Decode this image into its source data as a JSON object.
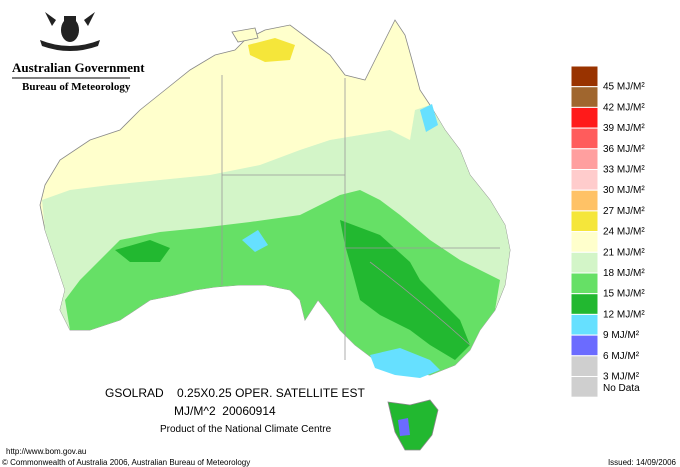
{
  "header": {
    "title": "Australian Government",
    "subtitle": "Bureau of Meteorology"
  },
  "legend": {
    "items": [
      {
        "label": "45 MJ/M²",
        "color": "#993300"
      },
      {
        "label": "42 MJ/M²",
        "color": "#a0662e"
      },
      {
        "label": "39 MJ/M²",
        "color": "#ff1a1a"
      },
      {
        "label": "36 MJ/M²",
        "color": "#ff5c5c"
      },
      {
        "label": "33 MJ/M²",
        "color": "#ff9f9f"
      },
      {
        "label": "30 MJ/M²",
        "color": "#ffcccc"
      },
      {
        "label": "27 MJ/M²",
        "color": "#ffc266"
      },
      {
        "label": "24 MJ/M²",
        "color": "#f5e63a"
      },
      {
        "label": "21 MJ/M²",
        "color": "#ffffcc"
      },
      {
        "label": "18 MJ/M²",
        "color": "#d3f5c8"
      },
      {
        "label": "15 MJ/M²",
        "color": "#66e066"
      },
      {
        "label": "12 MJ/M²",
        "color": "#22b830"
      },
      {
        "label": "9 MJ/M²",
        "color": "#66e0ff"
      },
      {
        "label": "6 MJ/M²",
        "color": "#6b6bff"
      },
      {
        "label": "3 MJ/M²",
        "color": "#cfcfcf"
      },
      {
        "label": "No Data",
        "color": "#cfcfcf"
      }
    ]
  },
  "caption": {
    "line1": "GSOLRAD    0.25X0.25 OPER. SATELLITE EST",
    "line2": "MJ/M^2  20060914",
    "line3": "Product of the National Climate Centre"
  },
  "footer": {
    "url": "http://www.bom.gov.au",
    "copyright": "© Commonwealth of Australia 2006, Australian Bureau of Meteorology",
    "issued": "Issued: 14/09/2006"
  }
}
